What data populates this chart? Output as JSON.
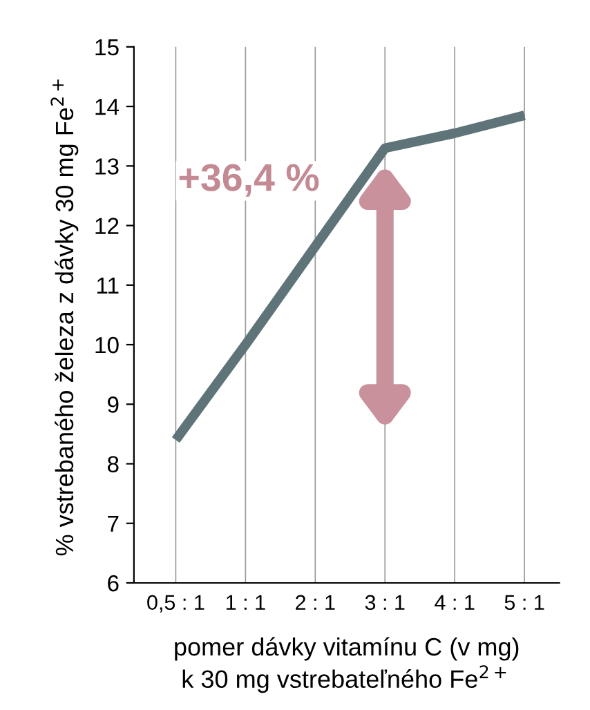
{
  "chart_data": {
    "type": "line",
    "ylabel": "% vstrebaného železa z dávky 30 mg Fe$^{2+}$",
    "xlabel": "pomer dávky vitamínu C (v mg)\nk 30 mg vstrebateľného Fe$^{2+}$",
    "categories": [
      "0,5 : 1",
      "1 : 1",
      "2 : 1",
      "3 : 1",
      "4 : 1",
      "5 : 1"
    ],
    "series": [
      {
        "color": "#5f7478",
        "values": [
          8.4,
          10.0,
          11.65,
          13.3,
          13.55,
          13.85
        ]
      }
    ],
    "ylim": [
      6,
      15
    ],
    "yticks": [
      6,
      7,
      8,
      9,
      10,
      11,
      12,
      13,
      14,
      15
    ],
    "grid": "x",
    "marker": "none",
    "line_style": "solid",
    "annotations": [
      "+36,4 %"
    ]
  }
}
